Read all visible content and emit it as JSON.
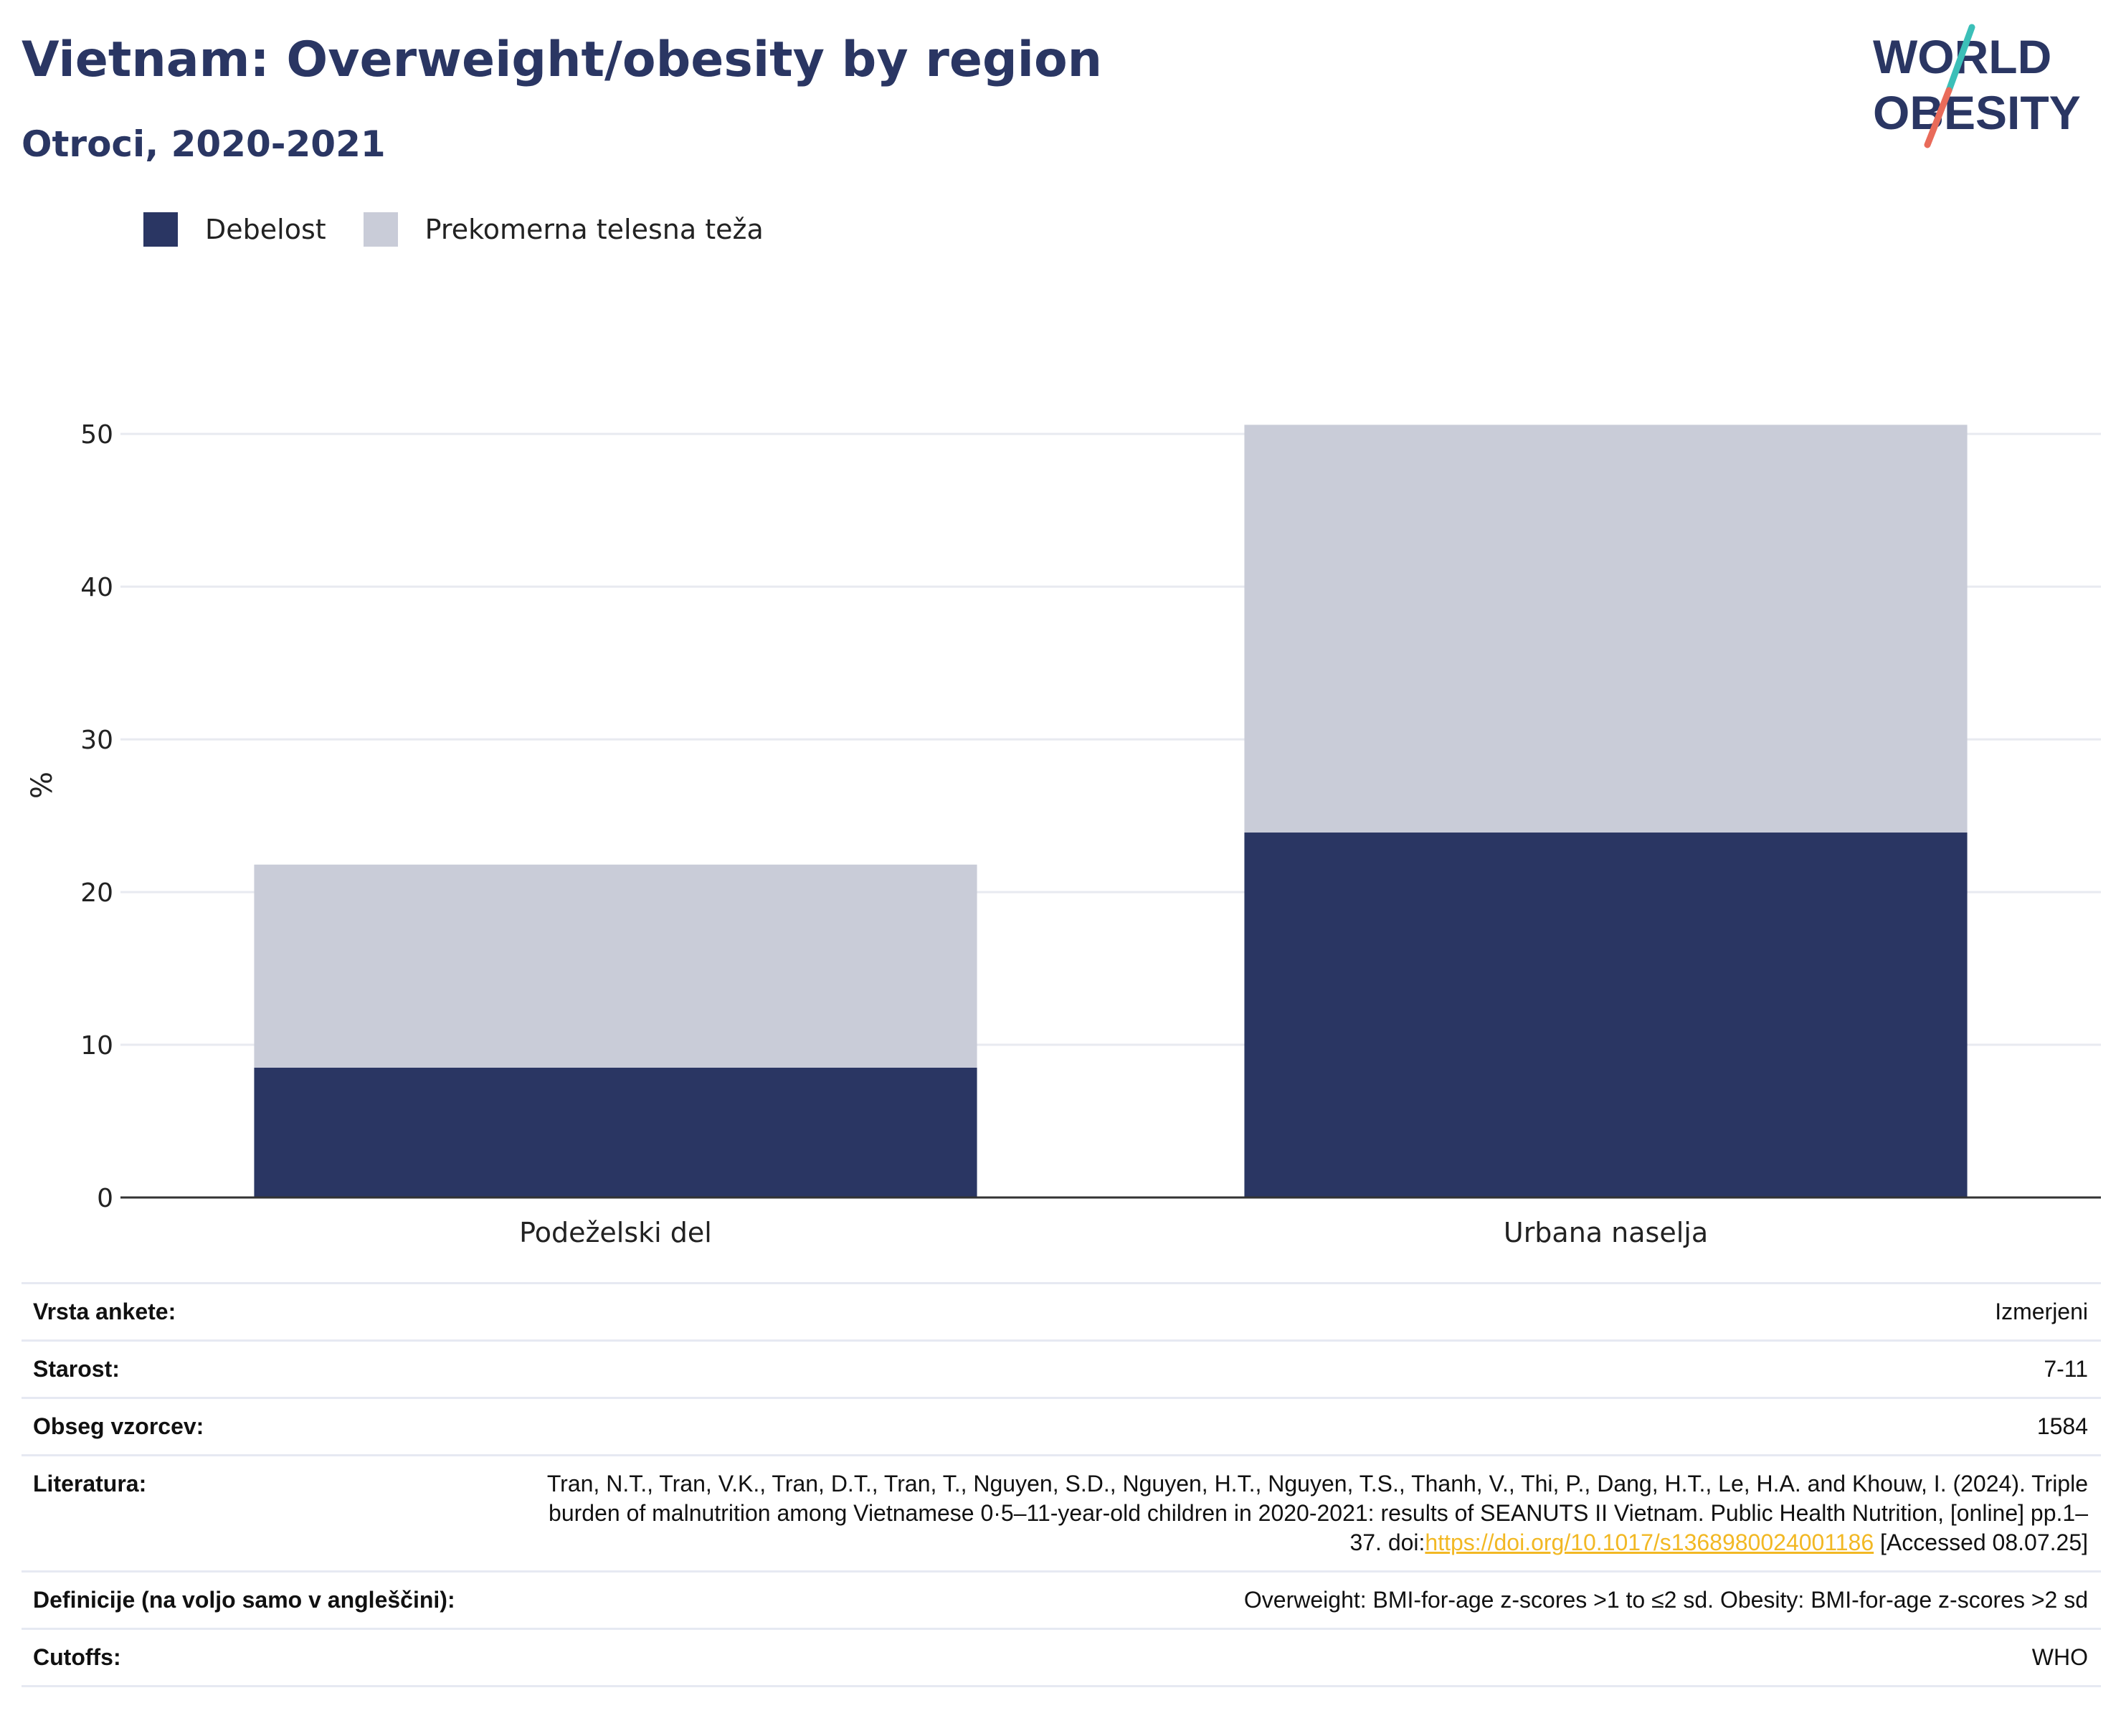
{
  "header": {
    "title": "Vietnam: Overweight/obesity by region",
    "subtitle": "Otroci, 2020-2021"
  },
  "logo": {
    "line1": "WORLD",
    "line2": "OBESITY",
    "colors": {
      "text": "#2a3663",
      "slash_top": "#3bbfb8",
      "slash_bottom": "#e96b5a"
    }
  },
  "legend": [
    {
      "label": "Debelost",
      "color": "#2a3663"
    },
    {
      "label": "Prekomerna telesna teža",
      "color": "#c9ccd8"
    }
  ],
  "chart_data": {
    "type": "bar",
    "stacked": true,
    "categories": [
      "Podeželski del",
      "Urbana naselja"
    ],
    "series": [
      {
        "name": "Debelost",
        "color": "#2a3663",
        "values": [
          8.5,
          23.9
        ]
      },
      {
        "name": "Prekomerna telesna teža",
        "color": "#c9ccd8",
        "values": [
          13.3,
          26.7
        ]
      }
    ],
    "ylabel": "%",
    "xlabel": "",
    "ylim": [
      0,
      54
    ],
    "yticks": [
      0,
      10,
      20,
      30,
      40,
      50
    ],
    "grid": true,
    "legend_position": "top-left"
  },
  "info": {
    "rows": [
      {
        "label": "Vrsta ankete:",
        "value": "Izmerjeni"
      },
      {
        "label": "Starost:",
        "value": "7-11"
      },
      {
        "label": "Obseg vzorcev:",
        "value": "1584"
      }
    ],
    "literature": {
      "label": "Literatura:",
      "text_before": "Tran, N.T., Tran, V.K., Tran, D.T., Tran, T., Nguyen, S.D., Nguyen, H.T., Nguyen, T.S., Thanh, V., Thi, P., Dang, H.T., Le, H.A. and Khouw, I. (2024). Triple burden of malnutrition among Vietnamese 0·5–11-year-old children in 2020-2021: results of SEANUTS II Vietnam. Public Health Nutrition, [online] pp.1–37. doi:",
      "link": "https://doi.org/10.1017/s1368980024001186",
      "text_after": " [Accessed 08.07.25]"
    },
    "rows2": [
      {
        "label": "Definicije (na voljo samo v angleščini):",
        "value": "Overweight: BMI-for-age z-scores >1 to ≤2 sd. Obesity: BMI-for-age z-scores >2 sd"
      },
      {
        "label": "Cutoffs:",
        "value": "WHO"
      }
    ]
  }
}
